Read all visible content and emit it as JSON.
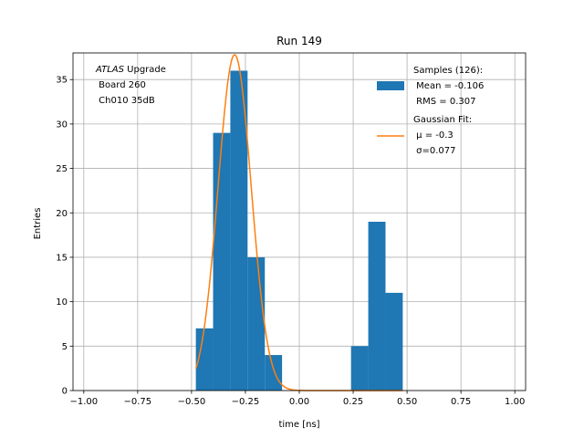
{
  "chart_data": {
    "type": "bar",
    "title": "Run 149",
    "xlabel": "time [ns]",
    "ylabel": "Entries",
    "xlim": [
      -1.05,
      1.05
    ],
    "ylim": [
      0,
      38
    ],
    "grid": true,
    "x_ticks": [
      -1.0,
      -0.75,
      -0.5,
      -0.25,
      0.0,
      0.25,
      0.5,
      0.75,
      1.0
    ],
    "x_tick_labels": [
      "−1.00",
      "−0.75",
      "−0.50",
      "−0.25",
      "0.00",
      "0.25",
      "0.50",
      "0.75",
      "1.00"
    ],
    "y_ticks": [
      0,
      5,
      10,
      15,
      20,
      25,
      30,
      35
    ],
    "y_tick_labels": [
      "0",
      "5",
      "10",
      "15",
      "20",
      "25",
      "30",
      "35"
    ],
    "histogram": {
      "name": "Samples (126):",
      "color": "#1f77b4",
      "bins": [
        {
          "start": -0.48,
          "end": -0.4,
          "count": 7
        },
        {
          "start": -0.4,
          "end": -0.32,
          "count": 29
        },
        {
          "start": -0.32,
          "end": -0.24,
          "count": 36
        },
        {
          "start": -0.24,
          "end": -0.16,
          "count": 15
        },
        {
          "start": -0.16,
          "end": -0.08,
          "count": 4
        },
        {
          "start": 0.24,
          "end": 0.32,
          "count": 5
        },
        {
          "start": 0.32,
          "end": 0.4,
          "count": 19
        },
        {
          "start": 0.4,
          "end": 0.48,
          "count": 11
        }
      ]
    },
    "gaussian_fit": {
      "name": "Gaussian Fit:",
      "color": "#ff7f0e",
      "mu": -0.3,
      "sigma": 0.077,
      "amplitude": 37.8,
      "x_range": [
        -0.48,
        0.48
      ]
    },
    "annotation": {
      "line1_italic": "ATLAS",
      "line1_rest": " Upgrade",
      "line2": " Board 260",
      "line3": " Ch010 35dB"
    },
    "legend": {
      "position": "top-right",
      "hist_lines": [
        "Samples (126):",
        " Mean = -0.106",
        " RMS = 0.307"
      ],
      "fit_lines": [
        "Gaussian Fit:",
        " μ = -0.3",
        " σ=0.077"
      ]
    }
  }
}
